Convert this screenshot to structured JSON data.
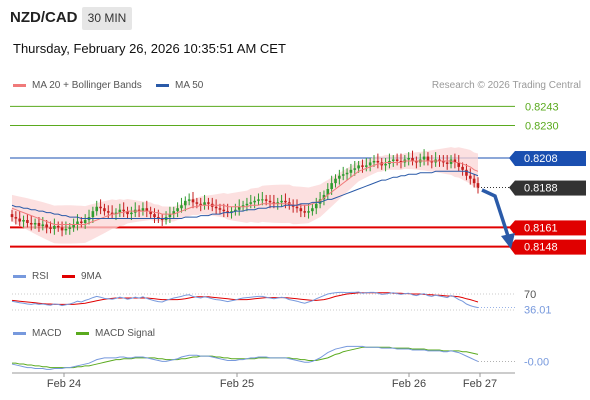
{
  "header": {
    "pair": "NZD/CAD",
    "timeframe": "30 MIN",
    "datetime": "Thursday, February 26, 2026 10:35:51 AM CET",
    "credit": "Research © 2026 Trading Central"
  },
  "legend": {
    "ma20_bb": "MA 20 + Bollinger Bands",
    "ma50": "MA 50",
    "rsi": "RSI",
    "ma9": "9MA",
    "macd": "MACD",
    "macd_signal": "MACD Signal"
  },
  "colors": {
    "resistance": "#5aaa1e",
    "pivot": "#1a4fb0",
    "support": "#e00000",
    "current": "#333333",
    "ma20": "#f07a7a",
    "ma50": "#2a5aa8",
    "bollinger_fill": "#fbd6d6",
    "up_candle": "#2f9b2f",
    "down_candle": "#c41e1e",
    "rsi_line": "#7799dd",
    "macd_line": "#7799dd",
    "signal_line": "#5aaa1e",
    "arrow": "#2a5aa8"
  },
  "chart_data": [
    {
      "type": "candlestick",
      "levels": [
        {
          "label": "0.8243",
          "value": 0.8243,
          "kind": "resistance"
        },
        {
          "label": "0.8230",
          "value": 0.823,
          "kind": "resistance"
        },
        {
          "label": "0.8208",
          "value": 0.8208,
          "kind": "pivot"
        },
        {
          "label": "0.8188",
          "value": 0.8188,
          "kind": "current"
        },
        {
          "label": "0.8161",
          "value": 0.8161,
          "kind": "support"
        },
        {
          "label": "0.8148",
          "value": 0.8148,
          "kind": "support"
        }
      ],
      "ylim": [
        0.8143,
        0.825
      ],
      "x_ticks": [
        "Feb 24",
        "Feb 25",
        "Feb 26",
        "Feb 27"
      ],
      "close_series": [
        0.8168,
        0.8167,
        0.8165,
        0.8166,
        0.8164,
        0.8163,
        0.8164,
        0.8162,
        0.8163,
        0.8161,
        0.816,
        0.8162,
        0.8161,
        0.8159,
        0.816,
        0.8161,
        0.8163,
        0.8165,
        0.8164,
        0.8166,
        0.8168,
        0.8172,
        0.8175,
        0.8174,
        0.8172,
        0.8171,
        0.817,
        0.8171,
        0.8173,
        0.8172,
        0.817,
        0.8171,
        0.8173,
        0.8172,
        0.8174,
        0.8172,
        0.817,
        0.8168,
        0.8167,
        0.8166,
        0.8168,
        0.817,
        0.8172,
        0.8174,
        0.8176,
        0.8179,
        0.818,
        0.8178,
        0.8177,
        0.8176,
        0.8178,
        0.8177,
        0.8175,
        0.8174,
        0.8173,
        0.8172,
        0.8171,
        0.8172,
        0.8173,
        0.8175,
        0.8176,
        0.8177,
        0.8178,
        0.8179,
        0.818,
        0.818,
        0.8179,
        0.8178,
        0.8177,
        0.8178,
        0.8179,
        0.8178,
        0.8176,
        0.8175,
        0.8174,
        0.8172,
        0.8171,
        0.8172,
        0.8174,
        0.8177,
        0.818,
        0.8183,
        0.8187,
        0.8191,
        0.8194,
        0.8196,
        0.8197,
        0.8198,
        0.82,
        0.8201,
        0.8203,
        0.8202,
        0.8203,
        0.8205,
        0.8206,
        0.8205,
        0.8203,
        0.8204,
        0.8206,
        0.8207,
        0.8206,
        0.8205,
        0.8207,
        0.8208,
        0.8206,
        0.8205,
        0.8207,
        0.8209,
        0.8206,
        0.8205,
        0.8207,
        0.8206,
        0.8205,
        0.8204,
        0.8207,
        0.8205,
        0.8202,
        0.82,
        0.8196,
        0.8194,
        0.8191,
        0.8188
      ],
      "ma20": [
        0.8174,
        0.8173,
        0.8172,
        0.8171,
        0.817,
        0.8169,
        0.8168,
        0.8167,
        0.8166,
        0.8165,
        0.8164,
        0.8163,
        0.8163,
        0.8163,
        0.8163,
        0.8163,
        0.8163,
        0.8163,
        0.8163,
        0.8163,
        0.8164,
        0.8165,
        0.8166,
        0.8167,
        0.8168,
        0.8169,
        0.817,
        0.817,
        0.8171,
        0.8171,
        0.8172,
        0.8172,
        0.8172,
        0.8172,
        0.8172,
        0.8172,
        0.8172,
        0.8171,
        0.8171,
        0.817,
        0.817,
        0.817,
        0.817,
        0.8171,
        0.8172,
        0.8173,
        0.8174,
        0.8175,
        0.8175,
        0.8176,
        0.8176,
        0.8176,
        0.8176,
        0.8176,
        0.8176,
        0.8176,
        0.8175,
        0.8175,
        0.8175,
        0.8175,
        0.8175,
        0.8175,
        0.8176,
        0.8176,
        0.8176,
        0.8177,
        0.8177,
        0.8177,
        0.8177,
        0.8177,
        0.8177,
        0.8177,
        0.8177,
        0.8176,
        0.8176,
        0.8176,
        0.8176,
        0.8176,
        0.8177,
        0.8178,
        0.8179,
        0.8181,
        0.8183,
        0.8185,
        0.8187,
        0.8189,
        0.8191,
        0.8193,
        0.8195,
        0.8197,
        0.8199,
        0.82,
        0.8201,
        0.8202,
        0.8203,
        0.8204,
        0.8204,
        0.8205,
        0.8205,
        0.8205,
        0.8205,
        0.8205,
        0.8206,
        0.8206,
        0.8206,
        0.8206,
        0.8206,
        0.8206,
        0.8206,
        0.8206,
        0.8206,
        0.8206,
        0.8206,
        0.8206,
        0.8206,
        0.8205,
        0.8205,
        0.8204,
        0.8203,
        0.8202,
        0.82,
        0.8199
      ],
      "ma50": [
        0.8176,
        0.8175,
        0.8175,
        0.8174,
        0.8174,
        0.8173,
        0.8173,
        0.8172,
        0.8172,
        0.8171,
        0.8171,
        0.817,
        0.817,
        0.8169,
        0.8169,
        0.8168,
        0.8168,
        0.8168,
        0.8167,
        0.8167,
        0.8167,
        0.8167,
        0.8167,
        0.8167,
        0.8167,
        0.8167,
        0.8167,
        0.8167,
        0.8167,
        0.8167,
        0.8167,
        0.8167,
        0.8167,
        0.8167,
        0.8167,
        0.8167,
        0.8167,
        0.8167,
        0.8167,
        0.8167,
        0.8167,
        0.8167,
        0.8167,
        0.8167,
        0.8167,
        0.8168,
        0.8168,
        0.8168,
        0.8168,
        0.8169,
        0.8169,
        0.8169,
        0.817,
        0.817,
        0.817,
        0.8171,
        0.8171,
        0.8171,
        0.8172,
        0.8172,
        0.8172,
        0.8173,
        0.8173,
        0.8173,
        0.8174,
        0.8174,
        0.8174,
        0.8175,
        0.8175,
        0.8175,
        0.8175,
        0.8176,
        0.8176,
        0.8176,
        0.8176,
        0.8177,
        0.8177,
        0.8177,
        0.8178,
        0.8178,
        0.8178,
        0.8179,
        0.818,
        0.818,
        0.8181,
        0.8182,
        0.8183,
        0.8184,
        0.8185,
        0.8186,
        0.8187,
        0.8188,
        0.8189,
        0.819,
        0.8191,
        0.8192,
        0.8193,
        0.8193,
        0.8194,
        0.8195,
        0.8195,
        0.8196,
        0.8196,
        0.8197,
        0.8197,
        0.8197,
        0.8198,
        0.8198,
        0.8198,
        0.8198,
        0.8199,
        0.8199,
        0.8199,
        0.8199,
        0.8199,
        0.8199,
        0.8199,
        0.8199,
        0.8199,
        0.8198,
        0.8197,
        0.8196
      ]
    },
    {
      "type": "line",
      "name": "RSI",
      "labels": [
        "70",
        "36.01"
      ],
      "ylim": [
        20,
        80
      ],
      "rsi": [
        52,
        50,
        48,
        47,
        45,
        44,
        46,
        44,
        45,
        43,
        42,
        45,
        44,
        41,
        43,
        45,
        48,
        52,
        50,
        54,
        57,
        61,
        64,
        62,
        59,
        58,
        57,
        59,
        62,
        60,
        57,
        59,
        62,
        60,
        63,
        59,
        56,
        53,
        51,
        50,
        54,
        57,
        60,
        62,
        64,
        67,
        68,
        64,
        62,
        60,
        63,
        61,
        58,
        56,
        55,
        53,
        51,
        53,
        55,
        58,
        60,
        61,
        62,
        63,
        64,
        64,
        62,
        60,
        58,
        60,
        62,
        60,
        56,
        54,
        52,
        49,
        47,
        50,
        53,
        58,
        62,
        66,
        70,
        72,
        73,
        74,
        74,
        73,
        74,
        74,
        75,
        72,
        73,
        74,
        74,
        72,
        69,
        70,
        72,
        73,
        71,
        69,
        71,
        72,
        68,
        66,
        69,
        71,
        66,
        64,
        67,
        65,
        63,
        61,
        66,
        62,
        56,
        52,
        45,
        41,
        38,
        36
      ],
      "ma9": [
        54,
        53,
        52,
        51,
        50,
        49,
        48,
        47,
        46,
        45,
        45,
        44,
        44,
        44,
        44,
        44,
        44,
        45,
        46,
        47,
        49,
        51,
        53,
        55,
        57,
        58,
        59,
        60,
        60,
        60,
        60,
        60,
        60,
        60,
        60,
        60,
        59,
        58,
        57,
        56,
        56,
        56,
        56,
        56,
        57,
        58,
        60,
        62,
        63,
        63,
        63,
        63,
        62,
        61,
        60,
        59,
        58,
        57,
        56,
        56,
        56,
        56,
        57,
        58,
        59,
        60,
        61,
        61,
        61,
        61,
        61,
        61,
        60,
        59,
        58,
        57,
        56,
        55,
        54,
        54,
        55,
        56,
        58,
        61,
        64,
        66,
        68,
        70,
        71,
        72,
        73,
        73,
        73,
        73,
        73,
        73,
        73,
        73,
        73,
        72,
        72,
        72,
        71,
        71,
        70,
        70,
        70,
        69,
        68,
        68,
        67,
        67,
        66,
        65,
        65,
        64,
        63,
        61,
        58,
        56,
        53,
        50
      ]
    },
    {
      "type": "line",
      "name": "MACD",
      "labels": [
        "-0.00"
      ],
      "ylim": [
        -0.0012,
        0.0022
      ],
      "macd": [
        -0.0003,
        -0.0004,
        -0.0005,
        -0.0006,
        -0.0007,
        -0.0007,
        -0.0008,
        -0.0008,
        -0.0008,
        -0.0009,
        -0.0009,
        -0.0008,
        -0.0008,
        -0.0008,
        -0.0007,
        -0.0007,
        -0.0006,
        -0.0005,
        -0.0004,
        -0.0003,
        -0.0002,
        0.0,
        0.0002,
        0.0003,
        0.0004,
        0.0004,
        0.0004,
        0.0004,
        0.0005,
        0.0005,
        0.0004,
        0.0004,
        0.0005,
        0.0005,
        0.0005,
        0.0004,
        0.0003,
        0.0002,
        0.0001,
        0.0,
        0.0,
        0.0001,
        0.0002,
        0.0003,
        0.0005,
        0.0006,
        0.0007,
        0.0007,
        0.0007,
        0.0006,
        0.0006,
        0.0006,
        0.0005,
        0.0004,
        0.0003,
        0.0002,
        0.0001,
        0.0001,
        0.0001,
        0.0002,
        0.0002,
        0.0003,
        0.0004,
        0.0004,
        0.0005,
        0.0005,
        0.0005,
        0.0004,
        0.0004,
        0.0004,
        0.0004,
        0.0004,
        0.0003,
        0.0002,
        0.0001,
        0.0,
        -0.0001,
        -0.0001,
        0.0,
        0.0002,
        0.0004,
        0.0007,
        0.001,
        0.0012,
        0.0014,
        0.0015,
        0.0016,
        0.0017,
        0.0017,
        0.0017,
        0.0017,
        0.0017,
        0.0016,
        0.0016,
        0.0016,
        0.0016,
        0.0015,
        0.0015,
        0.0015,
        0.0015,
        0.0014,
        0.0014,
        0.0014,
        0.0014,
        0.0013,
        0.0013,
        0.0013,
        0.0013,
        0.0012,
        0.0012,
        0.0012,
        0.0012,
        0.0011,
        0.0011,
        0.0012,
        0.0011,
        0.001,
        0.0008,
        0.0006,
        0.0004,
        0.0002,
        0.0
      ],
      "signal": [
        -0.0002,
        -0.0002,
        -0.0003,
        -0.0003,
        -0.0004,
        -0.0004,
        -0.0005,
        -0.0005,
        -0.0006,
        -0.0006,
        -0.0007,
        -0.0007,
        -0.0007,
        -0.0007,
        -0.0007,
        -0.0007,
        -0.0007,
        -0.0006,
        -0.0006,
        -0.0005,
        -0.0005,
        -0.0004,
        -0.0003,
        -0.0002,
        -0.0001,
        0.0,
        0.0001,
        0.0002,
        0.0002,
        0.0003,
        0.0003,
        0.0003,
        0.0004,
        0.0004,
        0.0004,
        0.0004,
        0.0004,
        0.0004,
        0.0003,
        0.0003,
        0.0002,
        0.0002,
        0.0002,
        0.0002,
        0.0003,
        0.0003,
        0.0004,
        0.0005,
        0.0005,
        0.0006,
        0.0006,
        0.0006,
        0.0006,
        0.0005,
        0.0005,
        0.0004,
        0.0004,
        0.0003,
        0.0003,
        0.0003,
        0.0003,
        0.0003,
        0.0003,
        0.0003,
        0.0004,
        0.0004,
        0.0004,
        0.0004,
        0.0004,
        0.0004,
        0.0004,
        0.0004,
        0.0004,
        0.0003,
        0.0003,
        0.0002,
        0.0002,
        0.0001,
        0.0001,
        0.0001,
        0.0002,
        0.0003,
        0.0004,
        0.0006,
        0.0008,
        0.0009,
        0.0011,
        0.0012,
        0.0013,
        0.0014,
        0.0015,
        0.0016,
        0.0016,
        0.0016,
        0.0016,
        0.0016,
        0.0016,
        0.0016,
        0.0016,
        0.0015,
        0.0015,
        0.0015,
        0.0015,
        0.0015,
        0.0014,
        0.0014,
        0.0014,
        0.0014,
        0.0013,
        0.0013,
        0.0013,
        0.0013,
        0.0012,
        0.0012,
        0.0012,
        0.0012,
        0.0012,
        0.0011,
        0.0011,
        0.001,
        0.0009,
        0.0008
      ]
    }
  ]
}
